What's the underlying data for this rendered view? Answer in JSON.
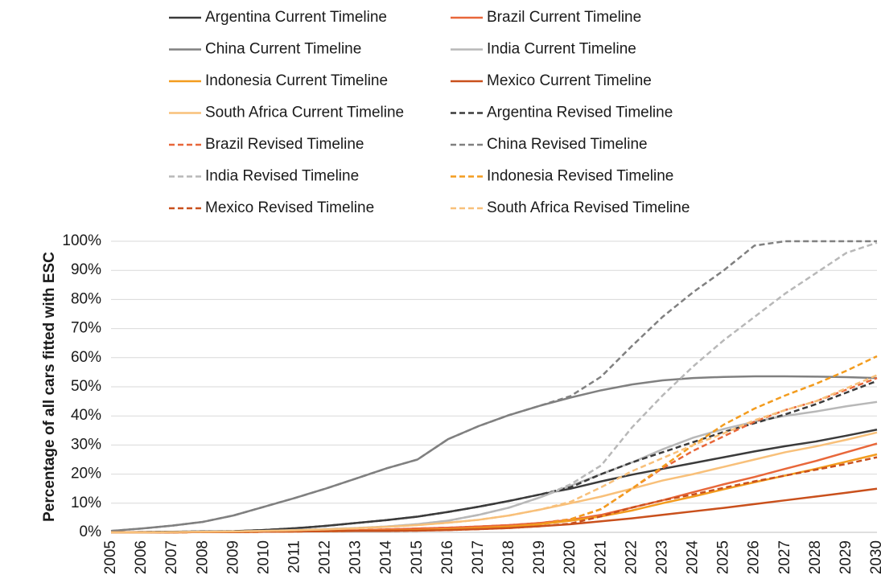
{
  "chart_data": {
    "type": "line",
    "y_label": "Percentage of all cars fitted with ESC",
    "categories": [
      "2005",
      "2006",
      "2007",
      "2008",
      "2009",
      "2010",
      "2011",
      "2012",
      "2013",
      "2014",
      "2015",
      "2016",
      "2017",
      "2018",
      "2019",
      "2020",
      "2021",
      "2022",
      "2023",
      "2024",
      "2025",
      "2026",
      "2027",
      "2028",
      "2029",
      "2030"
    ],
    "ylim": [
      0,
      100
    ],
    "yticks": [
      {
        "value": 0,
        "label": "0%"
      },
      {
        "value": 10,
        "label": "10%"
      },
      {
        "value": 20,
        "label": "20%"
      },
      {
        "value": 30,
        "label": "30%"
      },
      {
        "value": 40,
        "label": "40%"
      },
      {
        "value": 50,
        "label": "50%"
      },
      {
        "value": 60,
        "label": "60%"
      },
      {
        "value": 70,
        "label": "70%"
      },
      {
        "value": 80,
        "label": "80%"
      },
      {
        "value": 90,
        "label": "90%"
      },
      {
        "value": 100,
        "label": "100%"
      }
    ],
    "grid": true,
    "legend": "top",
    "series": [
      {
        "name": "Argentina Current Timeline",
        "color": "#3b3b3b",
        "dashed": false,
        "values": [
          0,
          0.1,
          0.2,
          0.3,
          0.4,
          0.8,
          1.4,
          2.2,
          3.2,
          4.2,
          5.4,
          7,
          8.8,
          10.8,
          13,
          15,
          17.5,
          19.8,
          21.8,
          23.8,
          25.8,
          27.8,
          29.6,
          31.2,
          33.2,
          35.3
        ]
      },
      {
        "name": "Brazil Current Timeline",
        "color": "#e8673a",
        "dashed": false,
        "values": [
          0,
          0,
          0,
          0.1,
          0.1,
          0.2,
          0.3,
          0.5,
          0.7,
          1,
          1.3,
          1.6,
          2,
          2.5,
          3.2,
          4.3,
          6,
          8.5,
          11,
          13.8,
          16.5,
          19,
          21.8,
          24.5,
          27.5,
          30.5
        ]
      },
      {
        "name": "China Current Timeline",
        "color": "#808080",
        "dashed": false,
        "values": [
          0.5,
          1.3,
          2.3,
          3.6,
          5.8,
          8.8,
          11.8,
          15,
          18.5,
          22,
          25,
          32,
          36.5,
          40.3,
          43.5,
          46.3,
          48.8,
          50.8,
          52.2,
          53,
          53.4,
          53.6,
          53.6,
          53.5,
          53.3,
          53
        ]
      },
      {
        "name": "India Current Timeline",
        "color": "#b8b8b8",
        "dashed": false,
        "values": [
          0,
          0,
          0.1,
          0.2,
          0.3,
          0.5,
          0.8,
          1.1,
          1.5,
          2,
          2.8,
          4,
          6,
          8.5,
          12,
          16,
          20,
          24,
          28.5,
          32.5,
          35.5,
          38,
          40,
          41.5,
          43.3,
          44.8
        ]
      },
      {
        "name": "Indonesia Current Timeline",
        "color": "#f39c1e",
        "dashed": false,
        "values": [
          0,
          0,
          0,
          0.1,
          0.1,
          0.2,
          0.3,
          0.4,
          0.5,
          0.6,
          0.8,
          1.1,
          1.5,
          2,
          2.8,
          4,
          5.5,
          7.5,
          10,
          12.3,
          14.8,
          17.2,
          19.5,
          21.8,
          24.3,
          26.8
        ]
      },
      {
        "name": "Mexico Current Timeline",
        "color": "#c9501c",
        "dashed": false,
        "values": [
          0,
          0,
          0,
          0.1,
          0.1,
          0.2,
          0.3,
          0.4,
          0.5,
          0.5,
          0.6,
          0.8,
          1.1,
          1.5,
          2.1,
          2.8,
          3.8,
          4.8,
          6,
          7.2,
          8.4,
          9.7,
          11,
          12.3,
          13.6,
          15
        ]
      },
      {
        "name": "South Africa Current Timeline",
        "color": "#f8c07a",
        "dashed": false,
        "values": [
          0,
          0,
          0.1,
          0.2,
          0.3,
          0.5,
          0.7,
          1,
          1.4,
          1.9,
          2.5,
          3.3,
          4.3,
          5.8,
          7.8,
          10,
          12.3,
          15,
          17.8,
          20,
          22.5,
          25,
          27.5,
          29.5,
          31.8,
          34.3
        ]
      },
      {
        "name": "Argentina Revised Timeline",
        "color": "#3b3b3b",
        "dashed": true,
        "values": [
          0,
          0.1,
          0.2,
          0.3,
          0.4,
          0.8,
          1.4,
          2.2,
          3.2,
          4.2,
          5.4,
          7,
          8.8,
          10.8,
          13,
          15.5,
          20,
          24,
          27.5,
          31,
          34.5,
          37.5,
          40.5,
          44,
          48,
          52
        ]
      },
      {
        "name": "Brazil Revised Timeline",
        "color": "#e8673a",
        "dashed": true,
        "values": [
          0,
          0,
          0,
          0.1,
          0.1,
          0.2,
          0.3,
          0.5,
          0.7,
          1,
          1.3,
          1.6,
          2,
          2.5,
          3.2,
          4.5,
          8,
          15,
          22,
          28,
          33,
          38,
          42,
          45,
          49,
          53
        ]
      },
      {
        "name": "China Revised Timeline",
        "color": "#808080",
        "dashed": true,
        "values": [
          0.5,
          1.3,
          2.3,
          3.6,
          5.8,
          8.8,
          11.8,
          15,
          18.5,
          22,
          25,
          32,
          36.5,
          40.3,
          43.5,
          46.8,
          53.5,
          64,
          74,
          82.5,
          90,
          98.5,
          100,
          100,
          100,
          100
        ]
      },
      {
        "name": "India Revised Timeline",
        "color": "#b8b8b8",
        "dashed": true,
        "values": [
          0,
          0,
          0.1,
          0.2,
          0.3,
          0.5,
          0.8,
          1.1,
          1.5,
          2,
          2.8,
          4,
          6,
          8.5,
          12,
          16.5,
          23,
          36,
          47,
          57,
          66,
          74,
          82,
          89,
          96,
          99.5
        ]
      },
      {
        "name": "Indonesia Revised Timeline",
        "color": "#f39c1e",
        "dashed": true,
        "values": [
          0,
          0,
          0,
          0.1,
          0.1,
          0.2,
          0.3,
          0.4,
          0.5,
          0.6,
          0.8,
          1.1,
          1.5,
          2,
          2.8,
          4.5,
          8,
          15,
          22.5,
          30,
          37,
          42.5,
          47,
          51,
          55.5,
          60.5
        ]
      },
      {
        "name": "Mexico Revised Timeline",
        "color": "#c9501c",
        "dashed": true,
        "values": [
          0,
          0,
          0,
          0.1,
          0.1,
          0.2,
          0.3,
          0.4,
          0.5,
          0.5,
          0.6,
          0.8,
          1.1,
          1.5,
          2.1,
          3,
          5.5,
          8.5,
          11,
          13,
          15.3,
          17.5,
          19.5,
          21.5,
          23.5,
          25.8
        ]
      },
      {
        "name": "South Africa Revised Timeline",
        "color": "#f8c07a",
        "dashed": true,
        "values": [
          0,
          0,
          0.1,
          0.2,
          0.3,
          0.5,
          0.7,
          1,
          1.4,
          1.9,
          2.5,
          3.3,
          4.3,
          5.8,
          7.8,
          10.5,
          15.5,
          21,
          25.5,
          30,
          34,
          38.5,
          42,
          45,
          49.5,
          54
        ]
      }
    ]
  }
}
